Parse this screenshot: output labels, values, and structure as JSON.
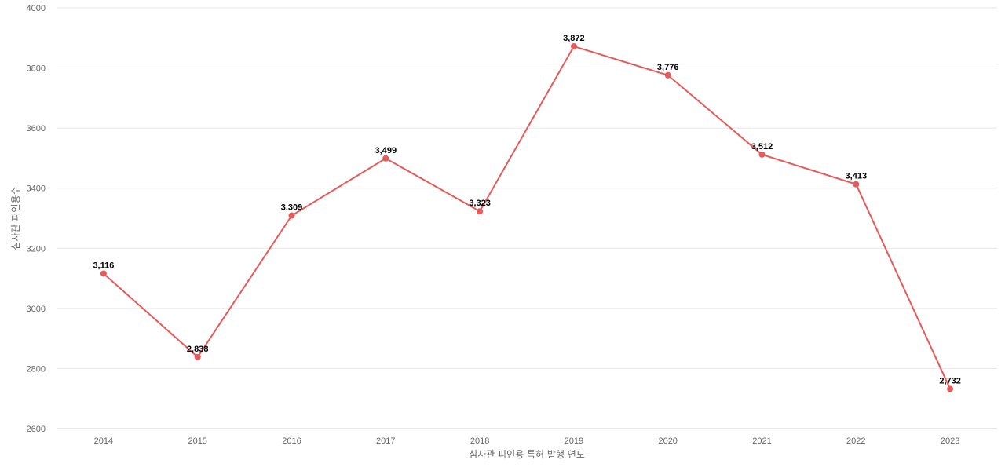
{
  "chart_data": {
    "type": "line",
    "title": "",
    "xlabel": "심사관 피인용 특허 발행 연도",
    "ylabel": "심사관 피인용수",
    "categories": [
      "2014",
      "2015",
      "2016",
      "2017",
      "2018",
      "2019",
      "2020",
      "2021",
      "2022",
      "2023"
    ],
    "series": [
      {
        "values": [
          3116,
          2838,
          3309,
          3499,
          3323,
          3872,
          3776,
          3512,
          3413,
          2732
        ],
        "value_labels": [
          "3,116",
          "2,838",
          "3,309",
          "3,499",
          "3,323",
          "3,872",
          "3,776",
          "3,512",
          "3,413",
          "2,732"
        ],
        "color": "#e85a5a"
      }
    ],
    "yticks": [
      "2600",
      "2800",
      "3000",
      "3200",
      "3400",
      "3600",
      "3800",
      "4000"
    ],
    "ylim": [
      2600,
      4000
    ],
    "grid": true,
    "legend": "none"
  }
}
